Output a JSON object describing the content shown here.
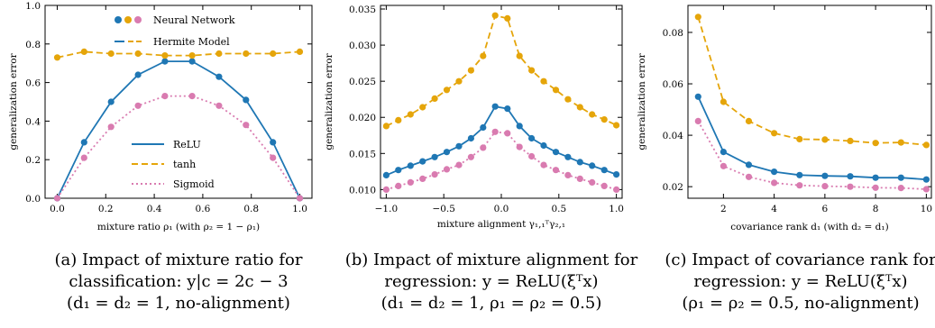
{
  "colors": {
    "relu": "#1f77b4",
    "tanh": "#e5a50a",
    "sigmoid": "#d97bb0"
  },
  "chart_data": [
    {
      "type": "line",
      "xlabel": "mixture ratio ρ₁ (with ρ₂ = 1 − ρ₁)",
      "ylabel": "generalization error",
      "xlim": [
        -0.05,
        1.05
      ],
      "ylim": [
        0,
        1.0
      ],
      "xticks": [
        0.0,
        0.2,
        0.4,
        0.6,
        0.8,
        1.0
      ],
      "xtick_labels": [
        "0.0",
        "0.2",
        "0.4",
        "0.6",
        "0.8",
        "1.0"
      ],
      "yticks": [
        0.0,
        0.2,
        0.4,
        0.6,
        0.8,
        1.0
      ],
      "ytick_labels": [
        "0.0",
        "0.2",
        "0.4",
        "0.6",
        "0.8",
        "1.0"
      ],
      "x": [
        0,
        0.111,
        0.222,
        0.333,
        0.444,
        0.556,
        0.667,
        0.778,
        0.889,
        1.0
      ],
      "series": [
        {
          "name": "ReLU",
          "color_key": "relu",
          "dash": "solid",
          "points": [
            0.0,
            0.29,
            0.5,
            0.64,
            0.71,
            0.71,
            0.63,
            0.51,
            0.29,
            0.0
          ]
        },
        {
          "name": "tanh",
          "color_key": "tanh",
          "dash": "dashed",
          "points": [
            0.73,
            0.76,
            0.75,
            0.75,
            0.74,
            0.74,
            0.75,
            0.75,
            0.75,
            0.76
          ]
        },
        {
          "name": "Sigmoid",
          "color_key": "sigmoid",
          "dash": "dotted",
          "points": [
            0.0,
            0.21,
            0.37,
            0.48,
            0.53,
            0.53,
            0.48,
            0.38,
            0.21,
            0.0
          ]
        }
      ],
      "legend_markers_label": "Neural Network",
      "legend_lines_label": "Hermite Model",
      "caption": [
        "(a) Impact of mixture ratio for",
        "classification: y|c = 2c − 3",
        "(d₁ = d₂ = 1, no-alignment)"
      ]
    },
    {
      "type": "line",
      "xlabel": "mixture alignment γ₁,₁ᵀγ₂,₁",
      "ylabel": "generalization error",
      "xlim": [
        -1.05,
        1.05
      ],
      "ylim": [
        0.0088,
        0.0355
      ],
      "xticks": [
        -1.0,
        -0.5,
        0.0,
        0.5,
        1.0
      ],
      "xtick_labels": [
        "−1.0",
        "−0.5",
        "0.0",
        "0.5",
        "1.0"
      ],
      "yticks": [
        0.01,
        0.015,
        0.02,
        0.025,
        0.03,
        0.035
      ],
      "ytick_labels": [
        "0.010",
        "0.015",
        "0.020",
        "0.025",
        "0.030",
        "0.035"
      ],
      "x": [
        -1.0,
        -0.895,
        -0.789,
        -0.684,
        -0.579,
        -0.474,
        -0.368,
        -0.263,
        -0.158,
        -0.053,
        0.053,
        0.158,
        0.263,
        0.368,
        0.474,
        0.579,
        0.684,
        0.789,
        0.895,
        1.0
      ],
      "series": [
        {
          "name": "ReLU",
          "color_key": "relu",
          "dash": "solid",
          "points": [
            0.012,
            0.0127,
            0.0133,
            0.0139,
            0.0145,
            0.0152,
            0.016,
            0.0171,
            0.0186,
            0.0215,
            0.0212,
            0.0188,
            0.0171,
            0.0161,
            0.0152,
            0.0145,
            0.0138,
            0.0133,
            0.0127,
            0.0121
          ]
        },
        {
          "name": "tanh",
          "color_key": "tanh",
          "dash": "dashed",
          "points": [
            0.0188,
            0.0196,
            0.0204,
            0.0214,
            0.0226,
            0.0238,
            0.025,
            0.0265,
            0.0285,
            0.0341,
            0.0337,
            0.0285,
            0.0265,
            0.025,
            0.0238,
            0.0225,
            0.0214,
            0.0204,
            0.0197,
            0.0189
          ]
        },
        {
          "name": "Sigmoid",
          "color_key": "sigmoid",
          "dash": "dotted",
          "points": [
            0.01,
            0.0105,
            0.011,
            0.0115,
            0.0121,
            0.0128,
            0.0134,
            0.0145,
            0.0158,
            0.018,
            0.0178,
            0.0159,
            0.0146,
            0.0134,
            0.0127,
            0.012,
            0.0115,
            0.011,
            0.0105,
            0.01
          ]
        }
      ],
      "caption": [
        "(b) Impact of mixture alignment for",
        "regression: y = ReLU(ξᵀx)",
        "(d₁ = d₂ = 1, ρ₁ = ρ₂ = 0.5)"
      ]
    },
    {
      "type": "line",
      "xlabel": "covariance rank d₁ (with d₂ = d₁)",
      "ylabel": "generalization error",
      "xlim": [
        0.6,
        10.2
      ],
      "ylim": [
        0.0155,
        0.0905
      ],
      "xticks": [
        2,
        4,
        6,
        8,
        10
      ],
      "xtick_labels": [
        "2",
        "4",
        "6",
        "8",
        "10"
      ],
      "yticks": [
        0.02,
        0.04,
        0.06,
        0.08
      ],
      "ytick_labels": [
        "0.02",
        "0.04",
        "0.06",
        "0.08"
      ],
      "x": [
        1,
        2,
        3,
        4,
        5,
        6,
        7,
        8,
        9,
        10
      ],
      "series": [
        {
          "name": "ReLU",
          "color_key": "relu",
          "dash": "solid",
          "points": [
            0.055,
            0.0335,
            0.0285,
            0.0258,
            0.0245,
            0.0242,
            0.024,
            0.0235,
            0.0235,
            0.0228
          ]
        },
        {
          "name": "tanh",
          "color_key": "tanh",
          "dash": "dashed",
          "points": [
            0.086,
            0.053,
            0.0455,
            0.0408,
            0.0385,
            0.0383,
            0.0378,
            0.037,
            0.0372,
            0.0362
          ]
        },
        {
          "name": "Sigmoid",
          "color_key": "sigmoid",
          "dash": "dotted",
          "points": [
            0.0455,
            0.028,
            0.0238,
            0.0215,
            0.0205,
            0.0202,
            0.02,
            0.0196,
            0.0195,
            0.019
          ]
        }
      ],
      "caption": [
        "(c) Impact of covariance rank for",
        "regression: y = ReLU(ξᵀx)",
        "(ρ₁ = ρ₂ = 0.5, no-alignment)"
      ]
    }
  ]
}
